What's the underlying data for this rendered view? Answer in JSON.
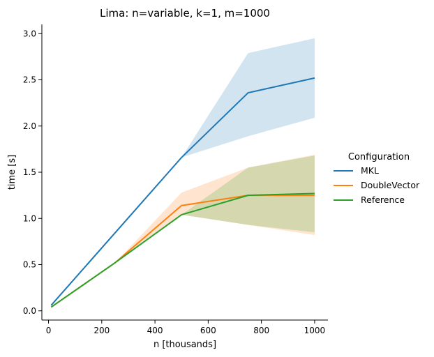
{
  "chart_data": {
    "type": "line",
    "title": "Lima: n=variable, k=1, m=1000",
    "xlabel": "n [thousands]",
    "ylabel": "time [s]",
    "xlim": [
      -25,
      1050
    ],
    "ylim": [
      -0.1,
      3.1
    ],
    "xticks": [
      0,
      200,
      400,
      600,
      800,
      1000
    ],
    "yticks": [
      0.0,
      0.5,
      1.0,
      1.5,
      2.0,
      2.5,
      3.0
    ],
    "xtick_labels": [
      "0",
      "200",
      "400",
      "600",
      "800",
      "1000"
    ],
    "ytick_labels": [
      "0.0",
      "0.5",
      "1.0",
      "1.5",
      "2.0",
      "2.5",
      "3.0"
    ],
    "grid": false,
    "legend": {
      "title": "Configuration",
      "placement": "right outside"
    },
    "series": [
      {
        "name": "MKL",
        "color": "#1f77b4",
        "x": [
          10,
          500,
          750,
          1000
        ],
        "y": [
          0.06,
          1.66,
          2.36,
          2.52
        ],
        "ci_low": [
          0.05,
          1.66,
          1.89,
          2.09
        ],
        "ci_high": [
          0.07,
          1.66,
          2.79,
          2.95
        ]
      },
      {
        "name": "DoubleVector",
        "color": "#ff7f0e",
        "x": [
          10,
          250,
          500,
          750,
          1000
        ],
        "y": [
          0.04,
          0.52,
          1.14,
          1.25,
          1.25
        ],
        "ci_low": [
          0.04,
          0.52,
          1.04,
          0.93,
          0.82
        ],
        "ci_high": [
          0.05,
          0.52,
          1.28,
          1.55,
          1.69
        ]
      },
      {
        "name": "Reference",
        "color": "#2ca02c",
        "x": [
          10,
          250,
          500,
          750,
          1000
        ],
        "y": [
          0.04,
          0.52,
          1.04,
          1.25,
          1.27
        ],
        "ci_low": [
          0.04,
          0.52,
          1.04,
          0.93,
          0.85
        ],
        "ci_high": [
          0.05,
          0.52,
          1.04,
          1.55,
          1.68
        ]
      }
    ]
  }
}
